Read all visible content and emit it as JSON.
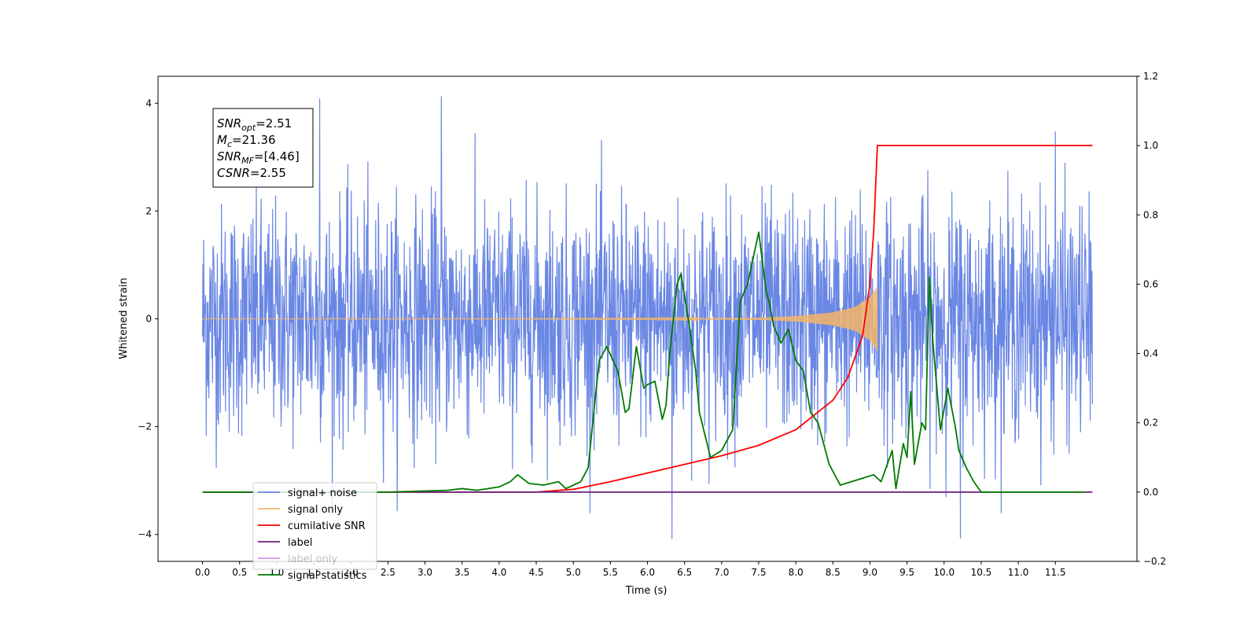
{
  "chart_data": {
    "type": "line",
    "title": "",
    "xlabel": "Time (s)",
    "ylabel": "Whitened strain",
    "xlim": [
      -0.6,
      12.6
    ],
    "ylim": [
      -4.5,
      4.5
    ],
    "ylim_right": [
      -0.2,
      1.2
    ],
    "x_ticks": [
      0.0,
      0.5,
      1.0,
      1.5,
      2.0,
      2.5,
      3.0,
      3.5,
      4.0,
      4.5,
      5.0,
      5.5,
      6.0,
      6.5,
      7.0,
      7.5,
      8.0,
      8.5,
      9.0,
      9.5,
      10.0,
      10.5,
      11.0,
      11.5
    ],
    "x_tick_labels": [
      "0.0",
      "0.5",
      "1.0",
      "1.5",
      "2.0",
      "2.5",
      "3.0",
      "3.5",
      "4.0",
      "4.5",
      "5.0",
      "5.5",
      "6.0",
      "6.5",
      "7.0",
      "7.5",
      "8.0",
      "8.5",
      "9.0",
      "9.5",
      "10.0",
      "10.5",
      "11.0",
      "11.5"
    ],
    "y_ticks_left": [
      4,
      2,
      0,
      -2,
      -4
    ],
    "y_tick_labels_left": [
      "4",
      "2",
      "0",
      "−2",
      "−4"
    ],
    "y_ticks_right": [
      1.2,
      1.0,
      0.8,
      0.6,
      0.4,
      0.2,
      0.0,
      -0.2
    ],
    "y_tick_labels_right": [
      "1.2",
      "1.0",
      "0.8",
      "0.6",
      "0.4",
      "0.2",
      "0.0",
      "−0.2"
    ],
    "grid": false,
    "legend_position": "lower-left",
    "series": [
      {
        "name": "signal+ noise",
        "axis": "left",
        "color": "#6a87e4",
        "description_type": "noise",
        "x_range": [
          0.0,
          12.0
        ],
        "approx_std": 1.05,
        "peak_values": [
          [
            1.58,
            4.08
          ],
          [
            3.22,
            4.12
          ],
          [
            6.33,
            -4.08
          ],
          [
            10.22,
            -4.07
          ],
          [
            11.5,
            3.47
          ]
        ]
      },
      {
        "name": "signal only",
        "axis": "left",
        "color": "#f5b56a",
        "description_type": "chirp",
        "x_range": [
          0.0,
          9.1
        ],
        "envelope_x": [
          0.0,
          4.0,
          6.0,
          7.5,
          8.0,
          8.5,
          8.8,
          9.0,
          9.1
        ],
        "envelope_y": [
          0.0,
          0.003,
          0.008,
          0.02,
          0.05,
          0.12,
          0.22,
          0.4,
          0.6
        ]
      },
      {
        "name": "cumilative SNR",
        "axis": "right",
        "color": "#ff0000",
        "x": [
          0.0,
          4.5,
          5.0,
          5.5,
          6.0,
          6.5,
          7.0,
          7.5,
          8.0,
          8.5,
          8.7,
          8.9,
          9.0,
          9.05,
          9.1,
          12.0
        ],
        "values": [
          0.0,
          0.0,
          0.008,
          0.03,
          0.055,
          0.08,
          0.105,
          0.135,
          0.18,
          0.265,
          0.33,
          0.45,
          0.6,
          0.75,
          1.0,
          1.0
        ]
      },
      {
        "name": "label",
        "axis": "right",
        "color": "#6a1e7c",
        "x": [
          0.0,
          12.0
        ],
        "values": [
          0.0,
          0.0
        ]
      },
      {
        "name": "label only",
        "axis": "right",
        "color": "#e08df0",
        "hidden_behind_legend": true,
        "x": [],
        "values": []
      },
      {
        "name": "signal statistics",
        "axis": "right",
        "color": "#007a00",
        "x": [
          0.0,
          2.5,
          3.3,
          3.5,
          3.7,
          4.0,
          4.15,
          4.25,
          4.4,
          4.6,
          4.8,
          4.9,
          5.1,
          5.2,
          5.3,
          5.35,
          5.45,
          5.6,
          5.7,
          5.75,
          5.85,
          5.95,
          6.0,
          6.1,
          6.2,
          6.25,
          6.3,
          6.4,
          6.45,
          6.55,
          6.65,
          6.7,
          6.85,
          7.0,
          7.1,
          7.15,
          7.25,
          7.35,
          7.5,
          7.6,
          7.65,
          7.7,
          7.8,
          7.9,
          8.0,
          8.1,
          8.2,
          8.3,
          8.45,
          8.6,
          8.75,
          8.9,
          9.05,
          9.15,
          9.3,
          9.35,
          9.45,
          9.5,
          9.55,
          9.6,
          9.7,
          9.75,
          9.8,
          9.85,
          9.95,
          10.05,
          10.15,
          10.2,
          10.3,
          10.4,
          10.5,
          10.6,
          10.8,
          11.0,
          11.5,
          11.9
        ],
        "values": [
          0.0,
          0.0,
          0.005,
          0.01,
          0.005,
          0.015,
          0.03,
          0.05,
          0.025,
          0.02,
          0.03,
          0.01,
          0.03,
          0.07,
          0.28,
          0.38,
          0.42,
          0.35,
          0.23,
          0.24,
          0.42,
          0.3,
          0.31,
          0.32,
          0.21,
          0.25,
          0.4,
          0.6,
          0.63,
          0.5,
          0.35,
          0.23,
          0.1,
          0.12,
          0.16,
          0.18,
          0.55,
          0.6,
          0.75,
          0.58,
          0.54,
          0.48,
          0.43,
          0.47,
          0.38,
          0.35,
          0.23,
          0.2,
          0.08,
          0.02,
          0.03,
          0.04,
          0.05,
          0.03,
          0.12,
          0.01,
          0.14,
          0.1,
          0.29,
          0.08,
          0.2,
          0.18,
          0.62,
          0.43,
          0.18,
          0.3,
          0.19,
          0.12,
          0.07,
          0.03,
          0.0,
          0.0,
          0.0,
          0.0,
          0.0,
          0.0
        ]
      }
    ],
    "info_box": {
      "lines": [
        {
          "main": "SNR",
          "sub": "opt",
          "rest": "=2.51"
        },
        {
          "main": "M",
          "sub": "c",
          "rest": "=21.36"
        },
        {
          "main": "SNR",
          "sub": "MF",
          "rest": "=[4.46]"
        },
        {
          "main": "CSNR",
          "sub": "",
          "rest": "=2.55"
        }
      ]
    }
  }
}
